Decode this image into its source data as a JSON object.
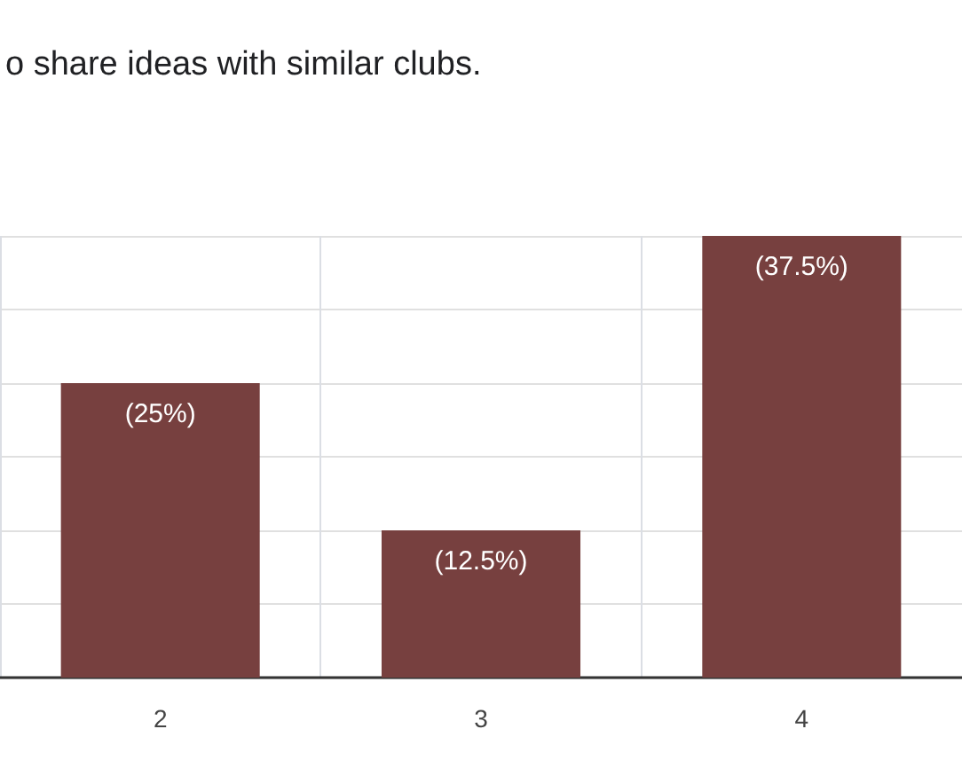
{
  "chart_data": {
    "type": "bar",
    "title": "o share ideas with similar clubs.",
    "categories": [
      "2",
      "3",
      "4"
    ],
    "values": [
      25,
      12.5,
      37.5
    ],
    "value_labels": [
      "(25%)",
      "(12.5%)",
      "(37.5%)"
    ],
    "color": "#77403f",
    "ylim": [
      0,
      37.5
    ],
    "yticks": [
      {
        "value": 0,
        "label": null
      },
      {
        "value": 6.25,
        "label": null
      },
      {
        "value": 12.5,
        "label": null
      },
      {
        "value": 18.75,
        "label": null
      },
      {
        "value": 25,
        "label": null
      },
      {
        "value": 31.25,
        "label": null
      },
      {
        "value": 37.5,
        "label": null
      }
    ],
    "tick_labels": "x",
    "grid": true
  }
}
